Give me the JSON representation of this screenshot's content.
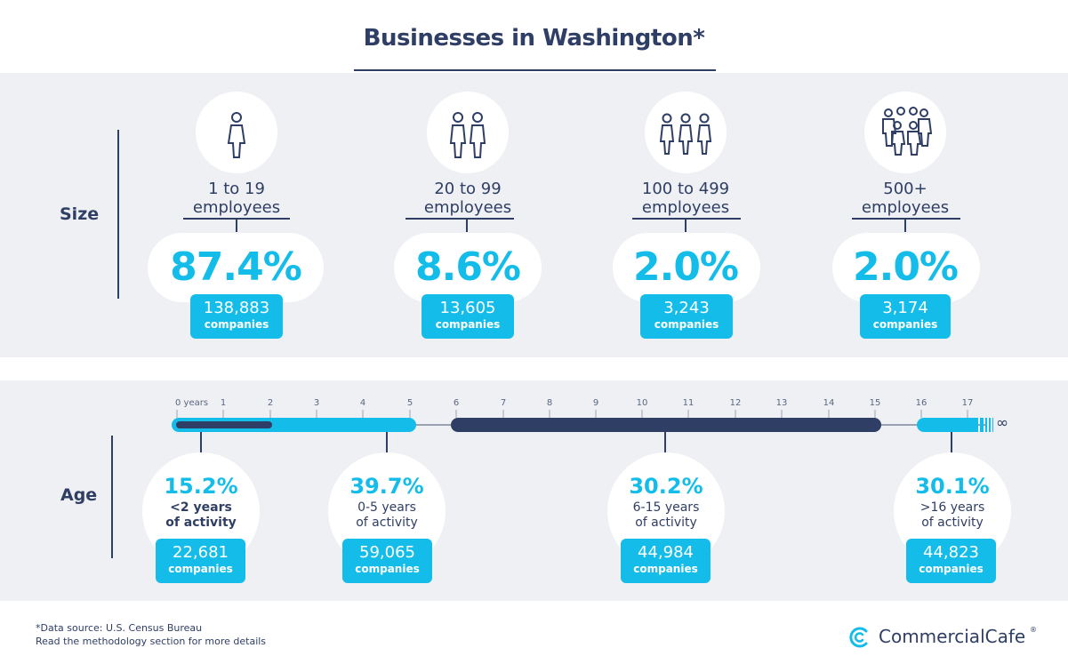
{
  "title": "Businesses in Washington*",
  "size_section": {
    "label": "Size",
    "columns": [
      {
        "icon": "single-person-icon",
        "label_line1": "1 to 19",
        "label_line2": "employees",
        "percent": "87.4%",
        "count": "138,883",
        "unit": "companies"
      },
      {
        "icon": "two-people-icon",
        "label_line1": "20 to 99",
        "label_line2": "employees",
        "percent": "8.6%",
        "count": "13,605",
        "unit": "companies"
      },
      {
        "icon": "three-people-icon",
        "label_line1": "100 to 499",
        "label_line2": "employees",
        "percent": "2.0%",
        "count": "3,243",
        "unit": "companies"
      },
      {
        "icon": "group-icon",
        "label_line1": "500+",
        "label_line2": "employees",
        "percent": "2.0%",
        "count": "3,174",
        "unit": "companies"
      }
    ]
  },
  "age_section": {
    "label": "Age",
    "axis_ticks": [
      "0 years",
      "1",
      "2",
      "3",
      "4",
      "5",
      "6",
      "7",
      "8",
      "9",
      "10",
      "11",
      "12",
      "13",
      "14",
      "15",
      "16",
      "17"
    ],
    "infinity_symbol": "∞",
    "groups": [
      {
        "percent": "15.2%",
        "desc_line1": "<2 years",
        "desc_line2": "of activity",
        "count": "22,681",
        "unit": "companies"
      },
      {
        "percent": "39.7%",
        "desc_line1": "0-5 years",
        "desc_line2": "of activity",
        "count": "59,065",
        "unit": "companies"
      },
      {
        "percent": "30.2%",
        "desc_line1": "6-15 years",
        "desc_line2": "of activity",
        "count": "44,984",
        "unit": "companies"
      },
      {
        "percent": "30.1%",
        "desc_line1": ">16 years",
        "desc_line2": "of activity",
        "count": "44,823",
        "unit": "companies"
      }
    ]
  },
  "footnote": {
    "line1": "*Data source: U.S. Census Bureau",
    "line2": "Read the methodology section for more details"
  },
  "brand": {
    "name": "CommercialCafe",
    "registered": "®"
  },
  "colors": {
    "accent": "#14bde9",
    "navy": "#2f3e64",
    "panel": "#eef0f3"
  }
}
